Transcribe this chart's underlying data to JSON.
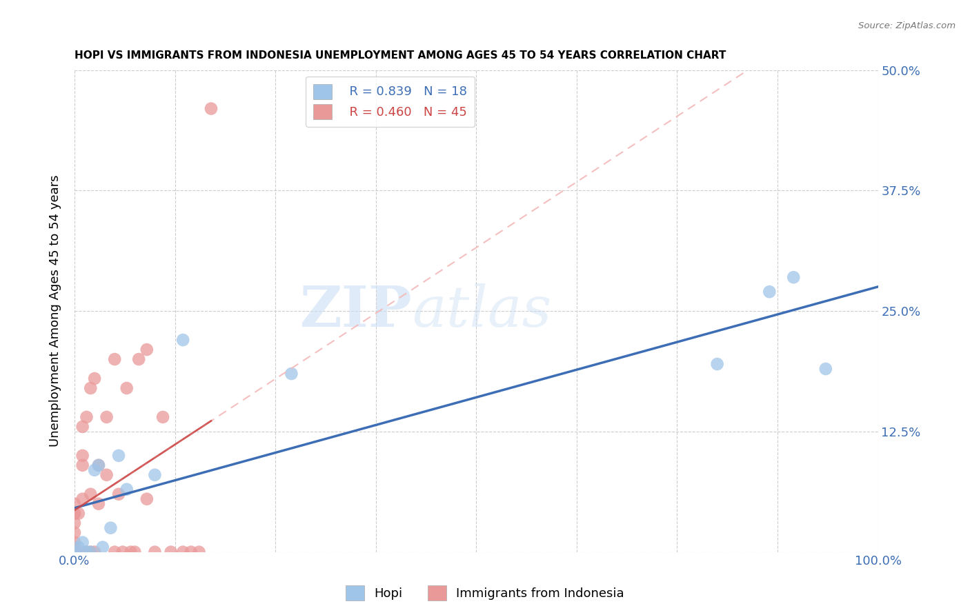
{
  "title": "HOPI VS IMMIGRANTS FROM INDONESIA UNEMPLOYMENT AMONG AGES 45 TO 54 YEARS CORRELATION CHART",
  "source": "Source: ZipAtlas.com",
  "ylabel": "Unemployment Among Ages 45 to 54 years",
  "xlim": [
    0,
    1.0
  ],
  "ylim": [
    0,
    0.5
  ],
  "hopi_color": "#9fc5e8",
  "indonesia_color": "#ea9999",
  "hopi_line_color": "#3d6eb5",
  "indonesia_line_color": "#cc4444",
  "indonesia_dash_color": "#f4b8b8",
  "legend_r_hopi": "R = 0.839",
  "legend_n_hopi": "N = 18",
  "legend_r_indonesia": "R = 0.460",
  "legend_n_indonesia": "N = 45",
  "watermark_zip": "ZIP",
  "watermark_atlas": "atlas",
  "hopi_x": [
    0.0,
    0.005,
    0.01,
    0.015,
    0.02,
    0.025,
    0.03,
    0.035,
    0.045,
    0.055,
    0.065,
    0.1,
    0.135,
    0.27,
    0.8,
    0.865,
    0.895,
    0.935
  ],
  "hopi_y": [
    0.0,
    0.005,
    0.01,
    0.0,
    0.0,
    0.085,
    0.09,
    0.005,
    0.025,
    0.1,
    0.065,
    0.08,
    0.22,
    0.185,
    0.195,
    0.27,
    0.285,
    0.19
  ],
  "indonesia_x": [
    0.0,
    0.0,
    0.0,
    0.0,
    0.0,
    0.0,
    0.0,
    0.0,
    0.0,
    0.0,
    0.0,
    0.005,
    0.005,
    0.01,
    0.01,
    0.01,
    0.01,
    0.015,
    0.015,
    0.02,
    0.02,
    0.02,
    0.025,
    0.025,
    0.03,
    0.03,
    0.04,
    0.04,
    0.05,
    0.05,
    0.055,
    0.06,
    0.065,
    0.07,
    0.075,
    0.08,
    0.09,
    0.09,
    0.1,
    0.11,
    0.12,
    0.135,
    0.145,
    0.155,
    0.17
  ],
  "indonesia_y": [
    0.0,
    0.0,
    0.0,
    0.0,
    0.005,
    0.01,
    0.02,
    0.03,
    0.04,
    0.04,
    0.05,
    0.0,
    0.04,
    0.055,
    0.09,
    0.1,
    0.13,
    0.0,
    0.14,
    0.0,
    0.06,
    0.17,
    0.0,
    0.18,
    0.05,
    0.09,
    0.08,
    0.14,
    0.0,
    0.2,
    0.06,
    0.0,
    0.17,
    0.0,
    0.0,
    0.2,
    0.055,
    0.21,
    0.0,
    0.14,
    0.0,
    0.0,
    0.0,
    0.0,
    0.46
  ]
}
